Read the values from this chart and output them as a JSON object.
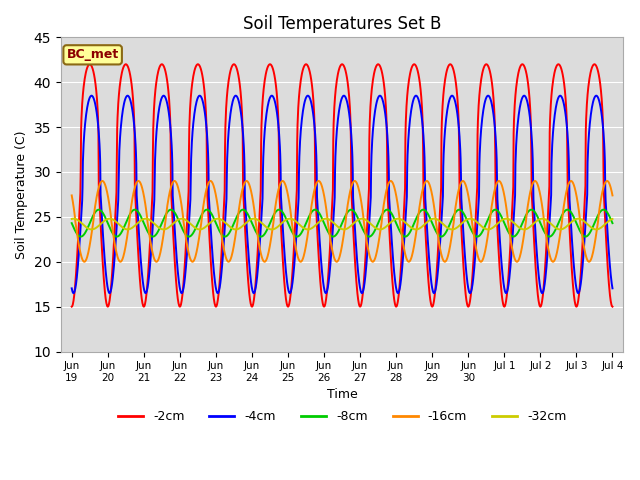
{
  "title": "Soil Temperatures Set B",
  "xlabel": "Time",
  "ylabel": "Soil Temperature (C)",
  "ylim": [
    10,
    45
  ],
  "xlim": [
    -0.3,
    15.3
  ],
  "bg_color": "#dcdcdc",
  "grid_color": "#ffffff",
  "annotation_text": "BC_met",
  "annotation_fg": "#8B0000",
  "annotation_bg": "#FFFF99",
  "annotation_border": "#8B6914",
  "depths": [
    {
      "label": "-2cm",
      "color": "#FF0000",
      "amp": 13.5,
      "mean": 28.5,
      "phase": 0.0,
      "sharpness": 3.5
    },
    {
      "label": "-4cm",
      "color": "#0000FF",
      "amp": 11.0,
      "mean": 27.5,
      "phase": 0.05,
      "sharpness": 2.5
    },
    {
      "label": "-8cm",
      "color": "#00CC00",
      "amp": 1.5,
      "mean": 24.3,
      "phase": 0.25,
      "sharpness": 1.0
    },
    {
      "label": "-16cm",
      "color": "#FF8800",
      "amp": 4.5,
      "mean": 24.5,
      "phase": 0.35,
      "sharpness": 1.2
    },
    {
      "label": "-32cm",
      "color": "#CCCC00",
      "amp": 0.6,
      "mean": 24.2,
      "phase": 0.55,
      "sharpness": 1.0
    }
  ],
  "n_points": 1500,
  "tick_positions": [
    0,
    1,
    2,
    3,
    4,
    5,
    6,
    7,
    8,
    9,
    10,
    11,
    12,
    13,
    14,
    15
  ],
  "tick_labels": [
    "Jun\n19",
    "Jun\n20",
    "Jun\n21",
    "Jun\n22",
    "Jun\n23",
    "Jun\n24",
    "Jun\n25",
    "Jun\n26",
    "Jun\n27",
    "Jun\n28",
    "Jun\n29",
    "Jun\n30",
    "Jul 1",
    "Jul 2",
    "Jul 3",
    "Jul 4"
  ],
  "tick_fontsize": 7.5,
  "title_fontsize": 12,
  "axis_label_fontsize": 9,
  "linewidth": 1.4,
  "legend_fontsize": 9,
  "yticks": [
    10,
    15,
    20,
    25,
    30,
    35,
    40,
    45
  ]
}
